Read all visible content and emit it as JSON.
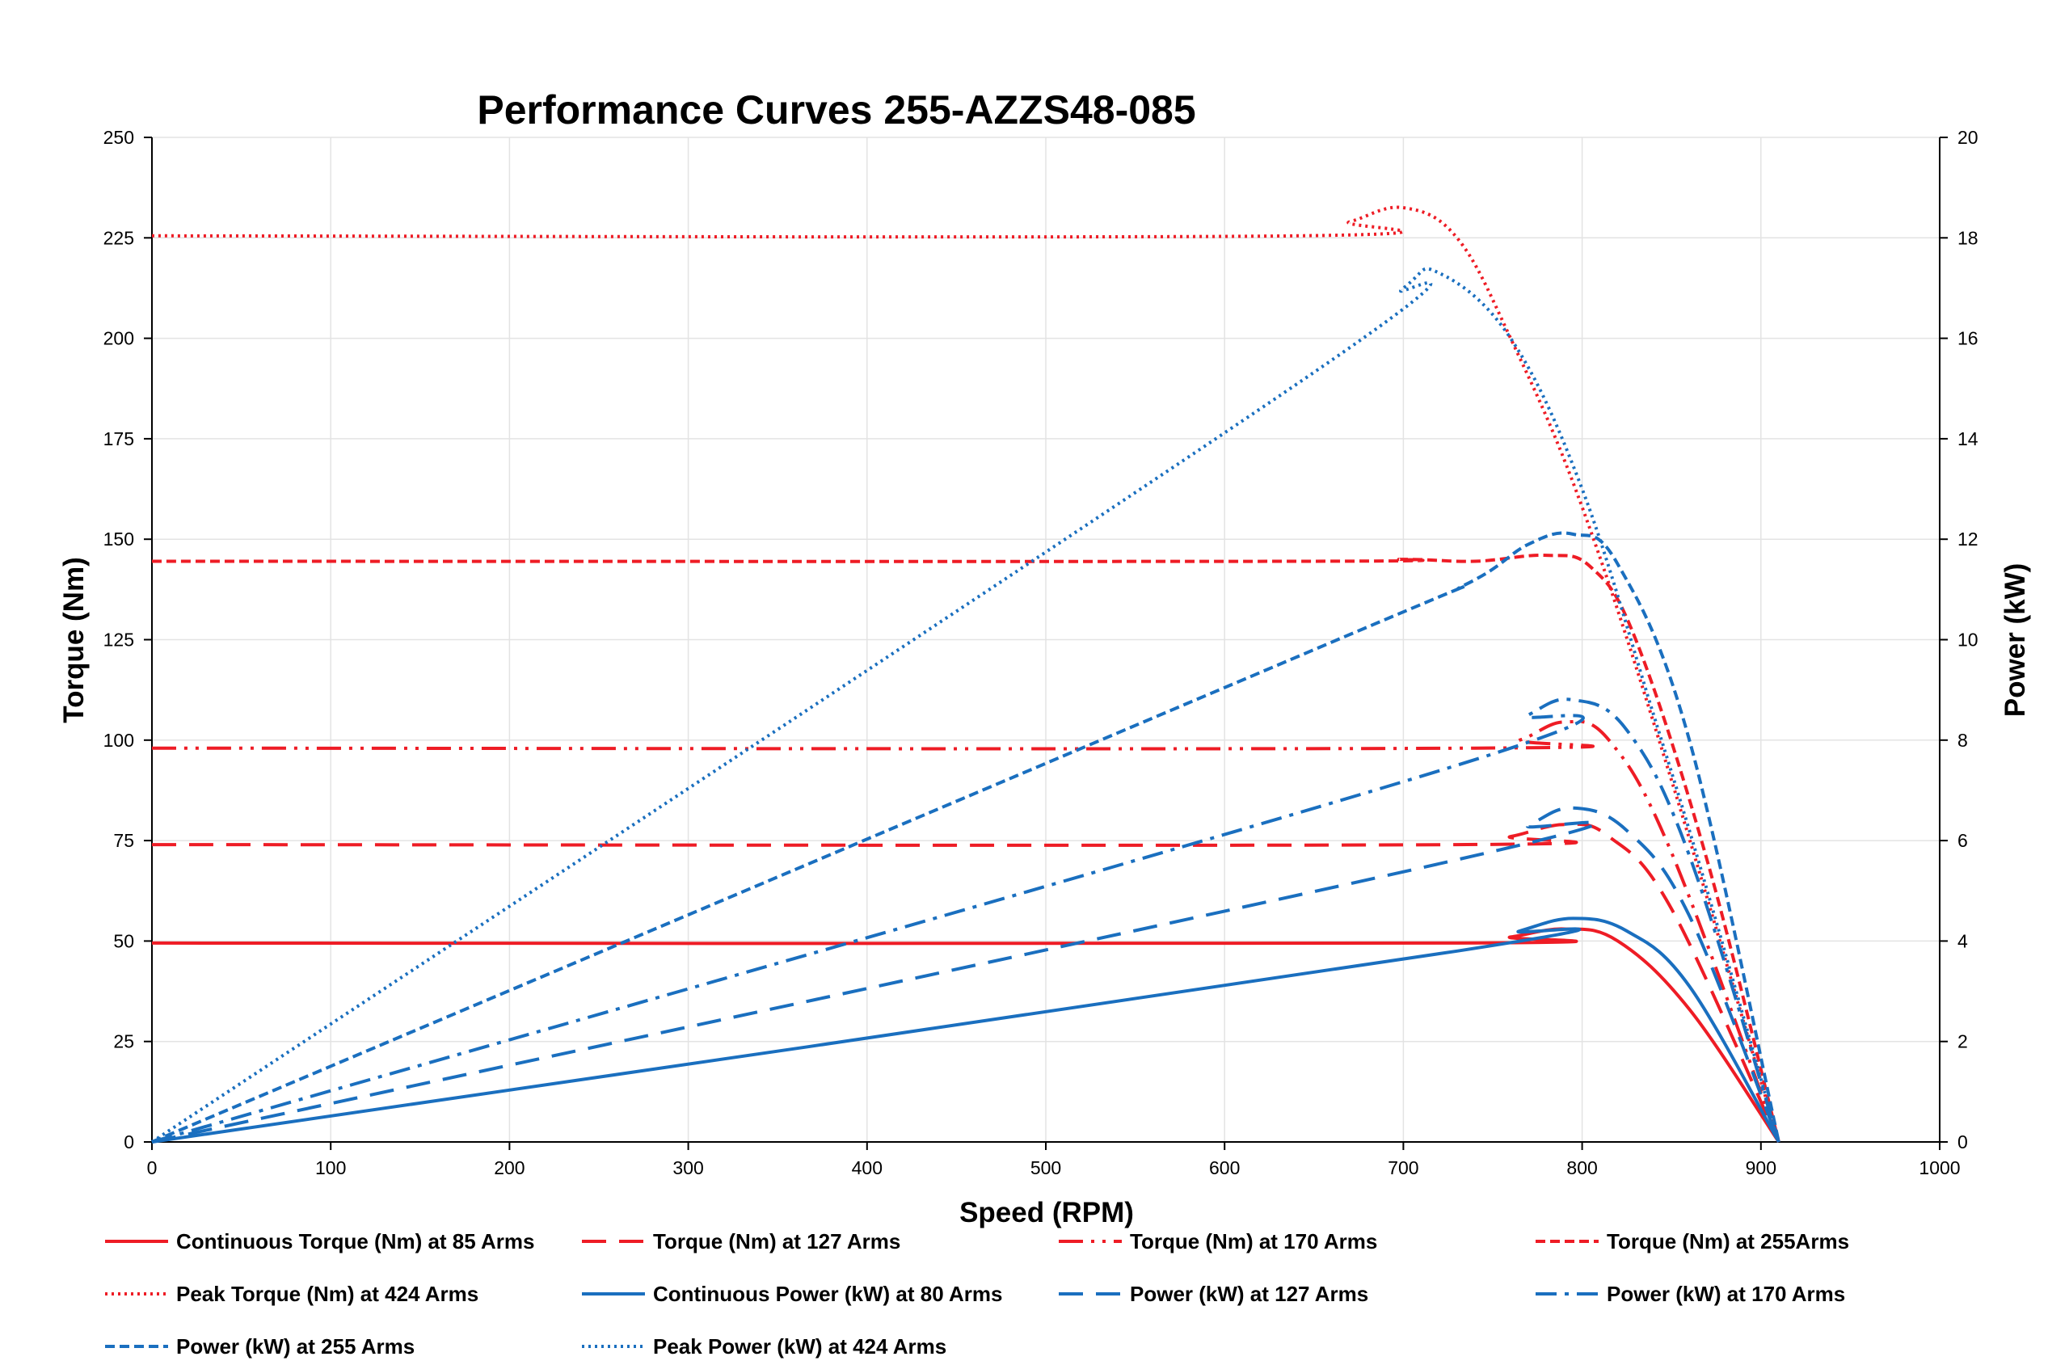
{
  "chart_data": {
    "type": "line",
    "title": "Performance Curves 255-AZZS48-085",
    "xlabel": "Speed (RPM)",
    "ylabel": "Torque (Nm)",
    "y2label": "Power (kW)",
    "xlim": [
      0,
      1000
    ],
    "ylim": [
      0,
      250
    ],
    "y2lim": [
      0,
      20
    ],
    "x_ticks": [
      "0",
      "100",
      "200",
      "300",
      "400",
      "500",
      "600",
      "700",
      "800",
      "900",
      "1000"
    ],
    "y_ticks": [
      "0",
      "25",
      "50",
      "75",
      "100",
      "125",
      "150",
      "175",
      "200",
      "225",
      "250"
    ],
    "y2_ticks": [
      "0",
      "2",
      "4",
      "6",
      "8",
      "10",
      "12",
      "14",
      "16",
      "18",
      "20"
    ],
    "grid": true,
    "legend_position": "bottom",
    "colors": {
      "torque": "#ee1c25",
      "power": "#1a6fbf"
    },
    "series": [
      {
        "name": "Continuous Torque (Nm) at 85 Arms",
        "axis": "left",
        "color": "#ee1c25",
        "dash": "solid",
        "x": [
          0,
          730,
          760,
          790,
          820,
          860,
          910
        ],
        "y": [
          49.5,
          49.5,
          51,
          53,
          50,
          33,
          0
        ]
      },
      {
        "name": "Torque (Nm) at 127 Arms",
        "axis": "left",
        "color": "#ee1c25",
        "dash": "longdash",
        "x": [
          0,
          730,
          760,
          790,
          815,
          850,
          910
        ],
        "y": [
          74,
          74,
          76,
          79,
          76,
          58,
          0
        ]
      },
      {
        "name": "Torque (Nm) at 170 Arms",
        "axis": "left",
        "color": "#ee1c25",
        "dash": "dashdotdot",
        "x": [
          0,
          740,
          765,
          790,
          815,
          850,
          910
        ],
        "y": [
          98,
          98,
          100,
          104.5,
          100,
          72,
          0
        ]
      },
      {
        "name": "Torque (Nm) at 255Arms",
        "axis": "left",
        "color": "#ee1c25",
        "dash": "shortdash",
        "x": [
          0,
          640,
          700,
          740,
          780,
          805,
          830,
          870,
          910
        ],
        "y": [
          144.5,
          144.5,
          145,
          144.5,
          146,
          143,
          125,
          70,
          0
        ]
      },
      {
        "name": "Peak Torque (Nm) at 424  Arms",
        "axis": "left",
        "color": "#ee1c25",
        "dash": "dotted",
        "x": [
          0,
          640,
          670,
          700,
          730,
          760,
          800,
          850,
          910
        ],
        "y": [
          225.5,
          225.5,
          229,
          232.5,
          225,
          200,
          158,
          90,
          0
        ]
      },
      {
        "name": "Continuous Power (kW) at 80 Arms",
        "axis": "right",
        "color": "#1a6fbf",
        "dash": "solid",
        "x": [
          0,
          730,
          765,
          795,
          825,
          860,
          910
        ],
        "y": [
          0,
          3.8,
          4.2,
          4.45,
          4.2,
          3.1,
          0
        ]
      },
      {
        "name": "Power (kW) at 127 Arms",
        "axis": "right",
        "color": "#1a6fbf",
        "dash": "longdash",
        "x": [
          0,
          740,
          770,
          795,
          825,
          860,
          910
        ],
        "y": [
          0,
          5.7,
          6.3,
          6.65,
          6.2,
          4.5,
          0
        ]
      },
      {
        "name": "Power (kW) at 170 Arms",
        "axis": "right",
        "color": "#1a6fbf",
        "dash": "dashdot",
        "x": [
          0,
          730,
          770,
          795,
          825,
          860,
          910
        ],
        "y": [
          0,
          7.5,
          8.5,
          8.8,
          8.2,
          5.7,
          0
        ]
      },
      {
        "name": "Power (kW) at 255 Arms",
        "axis": "right",
        "color": "#1a6fbf",
        "dash": "shortdash",
        "x": [
          0,
          650,
          735,
          770,
          795,
          820,
          860,
          910
        ],
        "y": [
          0,
          9.8,
          11.1,
          11.9,
          12.1,
          11.5,
          8.0,
          0
        ]
      },
      {
        "name": "Peak Power (kW) at 424 Arms",
        "axis": "right",
        "color": "#1a6fbf",
        "dash": "dotted",
        "x": [
          0,
          645,
          700,
          720,
          760,
          800,
          840,
          870,
          910
        ],
        "y": [
          0,
          15.2,
          17.0,
          17.3,
          16.0,
          13.0,
          8.5,
          5.0,
          0
        ]
      }
    ]
  }
}
